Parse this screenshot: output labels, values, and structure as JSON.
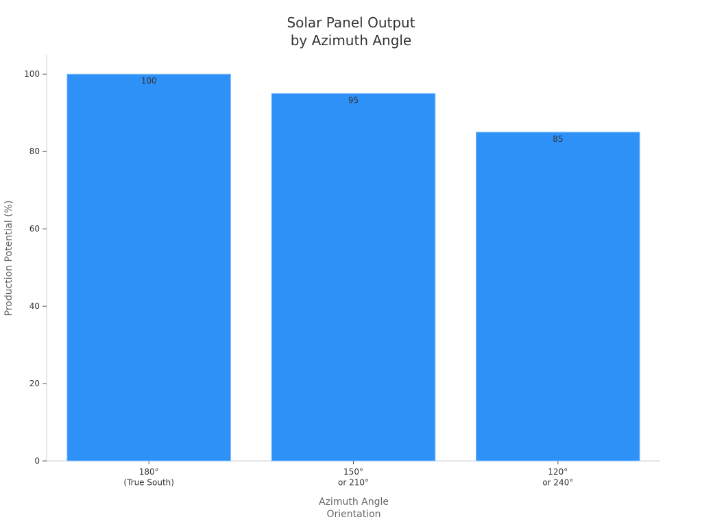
{
  "chart_data": {
    "type": "bar",
    "title": "Solar Panel Output\nby Azimuth Angle",
    "x_label": "Azimuth Angle\nOrientation",
    "y_label": "Production Potential (%)",
    "categories": [
      "180°\n(True South)",
      "150°\nor 210°",
      "120°\nor 240°"
    ],
    "values": [
      100,
      95,
      85
    ],
    "color": "#2e91f8",
    "ylim": [
      0,
      105
    ],
    "yticks": [
      0,
      20,
      40,
      60,
      80,
      100
    ],
    "grid": false
  }
}
